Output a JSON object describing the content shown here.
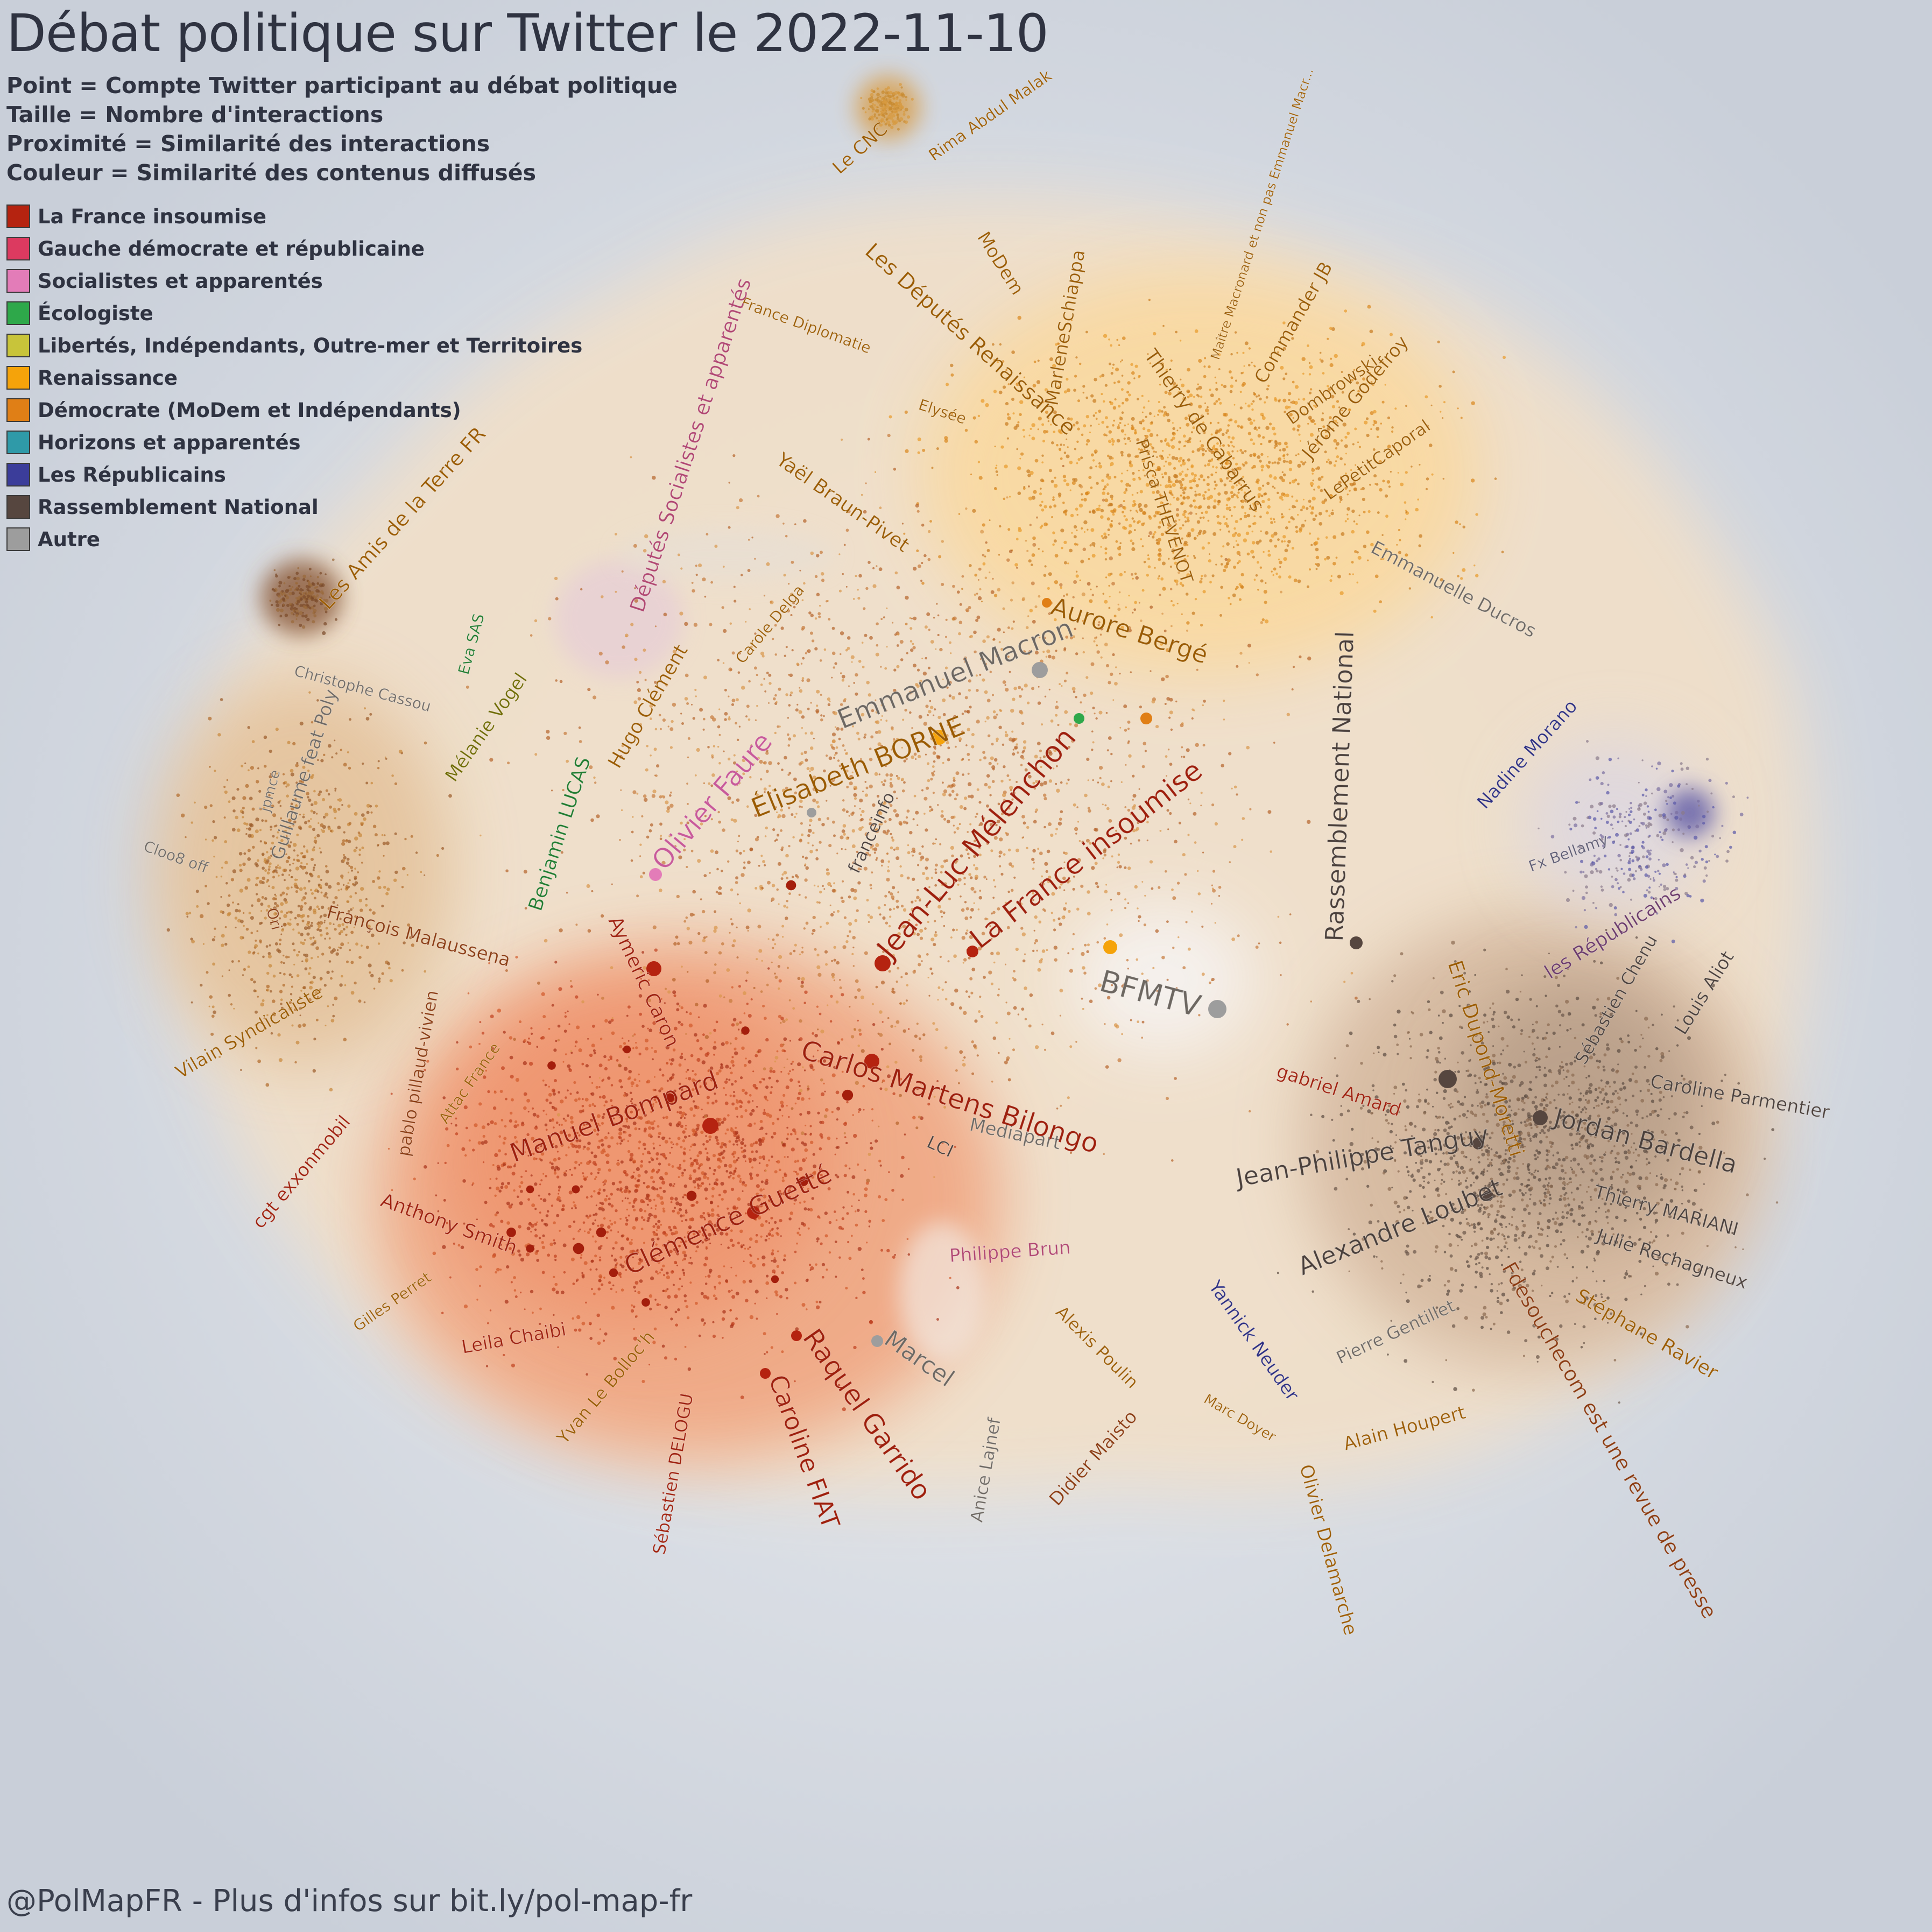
{
  "title": "Débat politique sur Twitter le 2022-11-10",
  "subtitles": [
    "Point = Compte Twitter participant au débat politique",
    "Taille = Nombre d'interactions",
    "Proximité = Similarité des interactions",
    "Couleur = Similarité des contenus diffusés"
  ],
  "legend": [
    {
      "label": "La France insoumise",
      "color": "#b52310"
    },
    {
      "label": "Gauche démocrate et républicaine",
      "color": "#dc3a60"
    },
    {
      "label": "Socialistes et apparentés",
      "color": "#e37cb8"
    },
    {
      "label": "Écologiste",
      "color": "#2ea84a"
    },
    {
      "label": "Libertés, Indépendants, Outre-mer et Territoires",
      "color": "#c8c43a"
    },
    {
      "label": "Renaissance",
      "color": "#f5a30a"
    },
    {
      "label": "Démocrate (MoDem et Indépendants)",
      "color": "#e07f16"
    },
    {
      "label": "Horizons et apparentés",
      "color": "#2f9aa8"
    },
    {
      "label": "Les Républicains",
      "color": "#3b3d9a"
    },
    {
      "label": "Rassemblement National",
      "color": "#56463f"
    },
    {
      "label": "Autre",
      "color": "#9d9d9d"
    }
  ],
  "accounts": [
    {
      "label": "Le CNC",
      "color": "#9a5a00"
    },
    {
      "label": "Rima Abdul Malak",
      "color": "#9a5a00"
    },
    {
      "label": "Les Députés Renaissance",
      "color": "#9a5a00"
    },
    {
      "label": "MoDem",
      "color": "#9a5a00"
    },
    {
      "label": "MarleneSchiappa",
      "color": "#9a5a00"
    },
    {
      "label": "Maître Macronard et non pas Emmanuel Macr...",
      "color": "#9a5a00"
    },
    {
      "label": "Commander JB",
      "color": "#9a5a00"
    },
    {
      "label": "Dombrowski",
      "color": "#9a5a00"
    },
    {
      "label": "Jérôme Godefroy",
      "color": "#9a5a00"
    },
    {
      "label": "LePetitCaporal",
      "color": "#9a5a00"
    },
    {
      "label": "Thierry de Cabarrus",
      "color": "#9a5a00"
    },
    {
      "label": "Prisca THEVENOT",
      "color": "#9a5a00"
    },
    {
      "label": "France Diplomatie",
      "color": "#9a5a00"
    },
    {
      "label": "Elysée",
      "color": "#9a5a00"
    },
    {
      "label": "Yaël Braun-Pivet",
      "color": "#9a5a00"
    },
    {
      "label": "Aurore Bergé",
      "color": "#9a5a00"
    },
    {
      "label": "Emmanuelle Ducros",
      "color": "#6d6761"
    },
    {
      "label": "Emmanuel Macron",
      "color": "#6d6761"
    },
    {
      "label": "Élisabeth BORNE",
      "color": "#9a5a00"
    },
    {
      "label": "Députés Socialistes et apparentés",
      "color": "#b04670"
    },
    {
      "label": "Carole Delga",
      "color": "#9a5a00"
    },
    {
      "label": "Les Amis de la Terre FR",
      "color": "#9a5a00"
    },
    {
      "label": "Christophe Cassou",
      "color": "#6d6761"
    },
    {
      "label": "Eva SAS",
      "color": "#1f7a2e"
    },
    {
      "label": "Mélanie Vogel",
      "color": "#6f6a00"
    },
    {
      "label": "Hugo Clément",
      "color": "#9a5a00"
    },
    {
      "label": "Benjamin LUCAS",
      "color": "#1f7a2e"
    },
    {
      "label": "Olivier Faure",
      "color": "#c85a99"
    },
    {
      "label": "franceinfo",
      "color": "#4a3f3a"
    },
    {
      "label": "Jean-Luc Mélenchon",
      "color": "#9e1f0c"
    },
    {
      "label": "La France insoumise",
      "color": "#9e1f0c"
    },
    {
      "label": "Rassemblement National",
      "color": "#4a3f3a"
    },
    {
      "label": "Eric Dupond-Moretti",
      "color": "#9a5a00"
    },
    {
      "label": "Nadine Morano",
      "color": "#2c2e80"
    },
    {
      "label": "Fx Bellamy",
      "color": "#5a5870"
    },
    {
      "label": "les Républicains",
      "color": "#6b3a6a"
    },
    {
      "label": "Sébastien Chenu",
      "color": "#4a3f3a"
    },
    {
      "label": "Louis Aliot",
      "color": "#4a3f3a"
    },
    {
      "label": "Caroline Parmentier",
      "color": "#4a3f3a"
    },
    {
      "label": "Jordan Bardella",
      "color": "#4a3f3a"
    },
    {
      "label": "Thierry MARIANI",
      "color": "#4a3f3a"
    },
    {
      "label": "Julie Rechagneux",
      "color": "#4a3f3a"
    },
    {
      "label": "Stéphane Ravier",
      "color": "#9a5a00"
    },
    {
      "label": "Jean-Philippe Tanguy",
      "color": "#4a3f3a"
    },
    {
      "label": "Alexandre Loubet",
      "color": "#4a3f3a"
    },
    {
      "label": "Fdesouchecom est une revue de presse",
      "color": "#8a3a10"
    },
    {
      "label": "Pierre Gentillet",
      "color": "#6d6761"
    },
    {
      "label": "Alain Houpert",
      "color": "#9a5a00"
    },
    {
      "label": "Olivier Delamarche",
      "color": "#9a5a00"
    },
    {
      "label": "Marc Doyer",
      "color": "#9a5a00"
    },
    {
      "label": "Yannick Neuder",
      "color": "#2c2e80"
    },
    {
      "label": "gabriel Amard",
      "color": "#9e1f0c"
    },
    {
      "label": "BFMTV",
      "color": "#6d6761"
    },
    {
      "label": "Mediapart",
      "color": "#6d6761"
    },
    {
      "label": "LCI",
      "color": "#4a3f3a"
    },
    {
      "label": "Philippe Brun",
      "color": "#b04670"
    },
    {
      "label": "Alexis Poulin",
      "color": "#9a5a00"
    },
    {
      "label": "Didier Maisto",
      "color": "#8a3a10"
    },
    {
      "label": "Anice Lajnef",
      "color": "#6d6761"
    },
    {
      "label": "Marcel",
      "color": "#6d6761"
    },
    {
      "label": "Raquel Garrido",
      "color": "#9e1f0c"
    },
    {
      "label": "Caroline FIAT",
      "color": "#9e1f0c"
    },
    {
      "label": "Sébastien DELOGU",
      "color": "#9e1f0c"
    },
    {
      "label": "Yvan Le Bolloc'h",
      "color": "#9a5a00"
    },
    {
      "label": "Leila Chaibi",
      "color": "#9e1f0c"
    },
    {
      "label": "Clémence Guetté",
      "color": "#9e1f0c"
    },
    {
      "label": "Manuel Bompard",
      "color": "#9e1f0c"
    },
    {
      "label": "Anthony Smith",
      "color": "#9e1f0c"
    },
    {
      "label": "Carlos Martens Bilongo",
      "color": "#9e1f0c"
    },
    {
      "label": "Aymeric Caron",
      "color": "#9e1f0c"
    },
    {
      "label": "Gilles Perret",
      "color": "#9a5a00"
    },
    {
      "label": "cgt exxonmobil",
      "color": "#9e1f0c"
    },
    {
      "label": "pablo pillaud-vivien",
      "color": "#8a3a10"
    },
    {
      "label": "Attac France",
      "color": "#9a5a00"
    },
    {
      "label": "Vilain Syndicaliste",
      "color": "#9a5a00"
    },
    {
      "label": "François Malaussena",
      "color": "#8a3a10"
    },
    {
      "label": "Guillaume feat Poly",
      "color": "#6d6761"
    },
    {
      "label": "jpmce",
      "color": "#6d6761"
    },
    {
      "label": "Cloo8 off",
      "color": "#6d6761"
    },
    {
      "label": "Ori",
      "color": "#8a3a10"
    }
  ],
  "footer": "@PolMapFR - Plus d'infos sur bit.ly/pol-map-fr"
}
